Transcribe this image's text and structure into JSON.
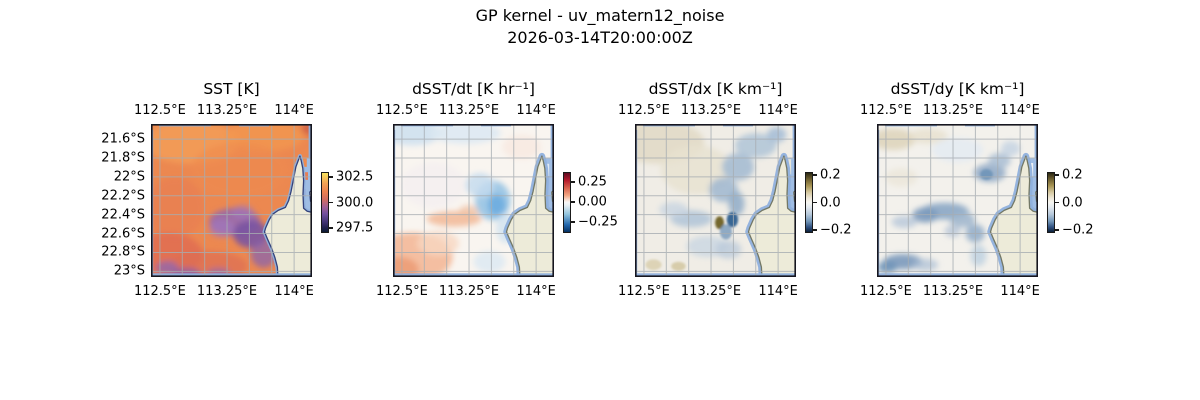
{
  "figure": {
    "suptitle_line1": "GP kernel - uv_matern12_noise",
    "suptitle_line2": "2026-03-14T20:00:00Z"
  },
  "colors": {
    "background": "#ffffff",
    "ocean_nodata": "#8fb0dd",
    "gulf_water": "#9fbde4",
    "land": "#edebd9",
    "gridline": "#a7adb2",
    "axes_border": "#16161f",
    "coastline_sst": "#33427c",
    "coastline_other": "#737866"
  },
  "chart_data": {
    "type": "heatmap",
    "title": "GP kernel - uv_matern12_noise",
    "timestamp": "2026-03-14T20:00:00Z",
    "layout": "4 geographic map subplots with individual colorbars, shared lat/lon region (North West Cape / Exmouth Gulf, Western Australia)",
    "x_axis": {
      "ticks": [
        "112.5°E",
        "113.25°E",
        "114°E"
      ],
      "tick_values_deg_east": [
        112.5,
        113.25,
        114.0
      ],
      "range_deg_east": [
        112.4,
        114.2
      ],
      "gridline_step_deg": 0.25,
      "labels_shown": "top and bottom of every panel"
    },
    "y_axis": {
      "ticks": [
        "21.6°S",
        "21.8°S",
        "22°S",
        "22.2°S",
        "22.4°S",
        "22.6°S",
        "22.8°S",
        "23°S"
      ],
      "tick_values_deg_south": [
        21.6,
        21.8,
        22.0,
        22.2,
        22.4,
        22.6,
        22.8,
        23.0
      ],
      "range_deg_south": [
        21.44,
        23.06
      ],
      "gridline_step_deg": 0.2,
      "labels_shown": "left side of first panel only"
    },
    "grid": true,
    "panels": [
      {
        "title": "SST [K]",
        "colorbar_ticks": [
          "302.5",
          "300.0",
          "297.5"
        ],
        "colorbar_range_approx": [
          297.0,
          303.5
        ],
        "colormap": "thermal (yellow-orange-purple-dark navy)",
        "field_summary": "warm ~301 K water over most of the domain, cooler ~298 K purple patches near the coast and along the southern edge"
      },
      {
        "title": "dSST/dt [K hr⁻¹]",
        "colorbar_ticks": [
          "0.25",
          "0.00",
          "−0.25"
        ],
        "colorbar_range_approx": [
          -0.35,
          0.35
        ],
        "colormap": "RdBu_r diverging (red positive, blue negative)",
        "field_summary": "near zero overall; weak warming (red) in the southwest, weak cooling (blue) patch west of the cape"
      },
      {
        "title": "dSST/dx [K km⁻¹]",
        "colorbar_ticks": [
          "0.2",
          "0.0",
          "−0.2"
        ],
        "colorbar_range_approx": [
          -0.22,
          0.22
        ],
        "colormap": "brown-white-blue diverging",
        "field_summary": "mostly near zero with tan tint northwest; negative (blue) band toward the coast and a strong negative spot near the cape"
      },
      {
        "title": "dSST/dy [K km⁻¹]",
        "colorbar_ticks": [
          "0.2",
          "0.0",
          "−0.2"
        ],
        "colorbar_range_approx": [
          -0.22,
          0.22
        ],
        "colormap": "brown-white-blue diverging",
        "field_summary": "near zero with sinuous negative (blue) bands across the center and the southwest corner"
      }
    ]
  }
}
